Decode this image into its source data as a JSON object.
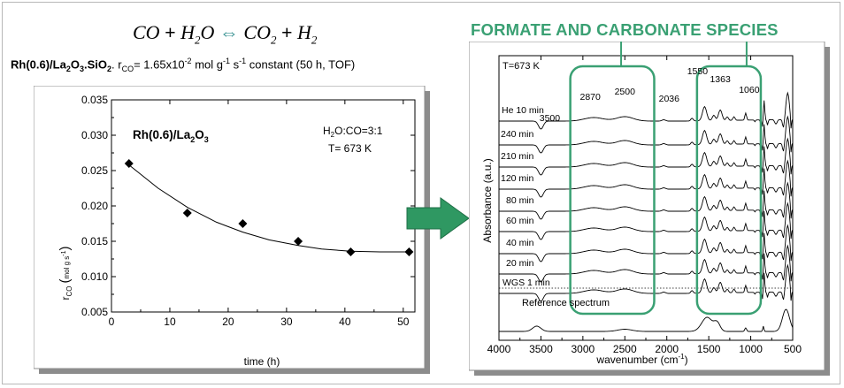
{
  "equation": {
    "lhs_a": "CO",
    "plus1": "+",
    "lhs_b": "H",
    "lhs_b_sub": "2",
    "lhs_b_tail": "O",
    "arrow": "⇔",
    "rhs_a": "CO",
    "rhs_a_sub": "2",
    "plus2": "+",
    "rhs_b": "H",
    "rhs_b_sub": "2"
  },
  "catalyst_line": {
    "name_main": "Rh(0.6)/La",
    "name_sub1": "2",
    "name_mid": "O",
    "name_sub2": "3",
    "name_tail": ".SiO",
    "name_sub3": "2",
    "rate_prefix": ". r",
    "rate_sub": "CO",
    "rate_value": "= 1.65x10",
    "rate_exp1": "-2",
    "rate_units": " mol g",
    "rate_exp2": "-1",
    "rate_units2": " s",
    "rate_exp3": "-1",
    "rate_suffix": " constant (50 h, TOF)"
  },
  "ftir_title": "FORMATE AND CARBONATE SPECIES",
  "colors": {
    "accent_green": "#3aa073",
    "arrow_fill": "#2f9862",
    "arrow_stroke": "#1e6e45",
    "panel_shadow": "#8c8c8c"
  },
  "chart_data": [
    {
      "type": "scatter",
      "title": "",
      "panel_label": {
        "main": "Rh(0.6)/La",
        "sub1": "2",
        "mid": "O",
        "sub2": "3"
      },
      "conditions": {
        "line1_a": "H",
        "line1_sub": "2",
        "line1_b": "O:CO=3:1",
        "line2": "T= 673 K"
      },
      "xlabel": "time (h)",
      "ylabel": {
        "main": "r",
        "sub": "CO",
        "units_open": "(",
        "units_text": "mol g s",
        "units_exp": "-1",
        "units_close": ")"
      },
      "xlim": [
        0,
        52
      ],
      "ylim": [
        0.005,
        0.035
      ],
      "xticks": [
        "0",
        "10",
        "20",
        "30",
        "40",
        "50"
      ],
      "yticks": [
        "0.005",
        "0.010",
        "0.015",
        "0.020",
        "0.025",
        "0.030",
        "0.035"
      ],
      "points": [
        {
          "x": 3,
          "y": 0.026
        },
        {
          "x": 13,
          "y": 0.019
        },
        {
          "x": 22.5,
          "y": 0.0175
        },
        {
          "x": 32,
          "y": 0.015
        },
        {
          "x": 41,
          "y": 0.0135
        },
        {
          "x": 51,
          "y": 0.0135
        }
      ],
      "fit_curve": {
        "x": [
          3,
          8,
          13,
          18,
          22.5,
          27,
          32,
          36,
          41,
          46,
          51
        ],
        "y": [
          0.0258,
          0.0225,
          0.0198,
          0.0177,
          0.0163,
          0.0152,
          0.0144,
          0.0139,
          0.0136,
          0.0135,
          0.0135
        ]
      },
      "marker": "diamond",
      "grid": false
    },
    {
      "type": "line",
      "title": "",
      "temperature_label": "T=673 K",
      "xlabel": {
        "main": "wavenumber (cm",
        "exp": "-1",
        "close": ")"
      },
      "ylabel": "Absorbance (a.u.)",
      "xlim": [
        4000,
        500
      ],
      "x_reversed": true,
      "xticks": [
        "4000",
        "3500",
        "3000",
        "2500",
        "2000",
        "1500",
        "1000",
        "500"
      ],
      "series": [
        {
          "name": "He 10 min"
        },
        {
          "name": "240 min"
        },
        {
          "name": "210 min"
        },
        {
          "name": "120 min"
        },
        {
          "name": "80 min"
        },
        {
          "name": "60 min"
        },
        {
          "name": "40 min"
        },
        {
          "name": "20 min"
        },
        {
          "name": "WGS 1 min"
        }
      ],
      "reference_label": "Reference spectrum",
      "peak_labels": [
        {
          "text": "3500",
          "x": 3500
        },
        {
          "text": "2870",
          "x": 2870
        },
        {
          "text": "2500",
          "x": 2500
        },
        {
          "text": "2036",
          "x": 2036
        },
        {
          "text": "1550",
          "x": 1550
        },
        {
          "text": "1363",
          "x": 1363
        },
        {
          "text": "1060",
          "x": 1060
        }
      ],
      "highlight_regions": [
        {
          "from": 3150,
          "to": 2150
        },
        {
          "from": 1640,
          "to": 880
        }
      ],
      "grid": false
    }
  ]
}
